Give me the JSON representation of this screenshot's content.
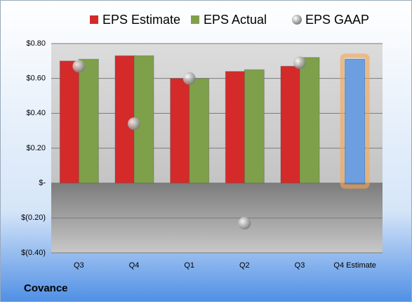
{
  "chart_data": {
    "type": "bar",
    "categories": [
      "Q3",
      "Q4",
      "Q1",
      "Q2",
      "Q3",
      "Q4 Estimate"
    ],
    "series": [
      {
        "name": "EPS Estimate",
        "color": "#d42a2a",
        "values": [
          0.7,
          0.73,
          0.6,
          0.64,
          0.67,
          null
        ]
      },
      {
        "name": "EPS Actual",
        "color": "#7ea04a",
        "values": [
          0.71,
          0.73,
          0.6,
          0.65,
          0.72,
          null
        ]
      },
      {
        "name": "EPS GAAP",
        "color": "#a8a8a8",
        "values": [
          0.67,
          0.34,
          0.6,
          -0.23,
          0.69,
          null
        ]
      }
    ],
    "forecast": {
      "values": [
        null,
        null,
        null,
        null,
        null,
        0.71
      ],
      "color": "#6d9fe0",
      "glow": "#f5a550"
    },
    "ylim": [
      -0.4,
      0.8
    ],
    "yticks": [
      {
        "value": -0.4,
        "label": "$(0.40)"
      },
      {
        "value": -0.2,
        "label": "$(0.20)"
      },
      {
        "value": 0,
        "label": "$-"
      },
      {
        "value": 0.2,
        "label": "$0.20"
      },
      {
        "value": 0.4,
        "label": "$0.40"
      },
      {
        "value": 0.6,
        "label": "$0.60"
      },
      {
        "value": 0.8,
        "label": "$0.80"
      }
    ],
    "grid": true,
    "company": "Covance"
  }
}
